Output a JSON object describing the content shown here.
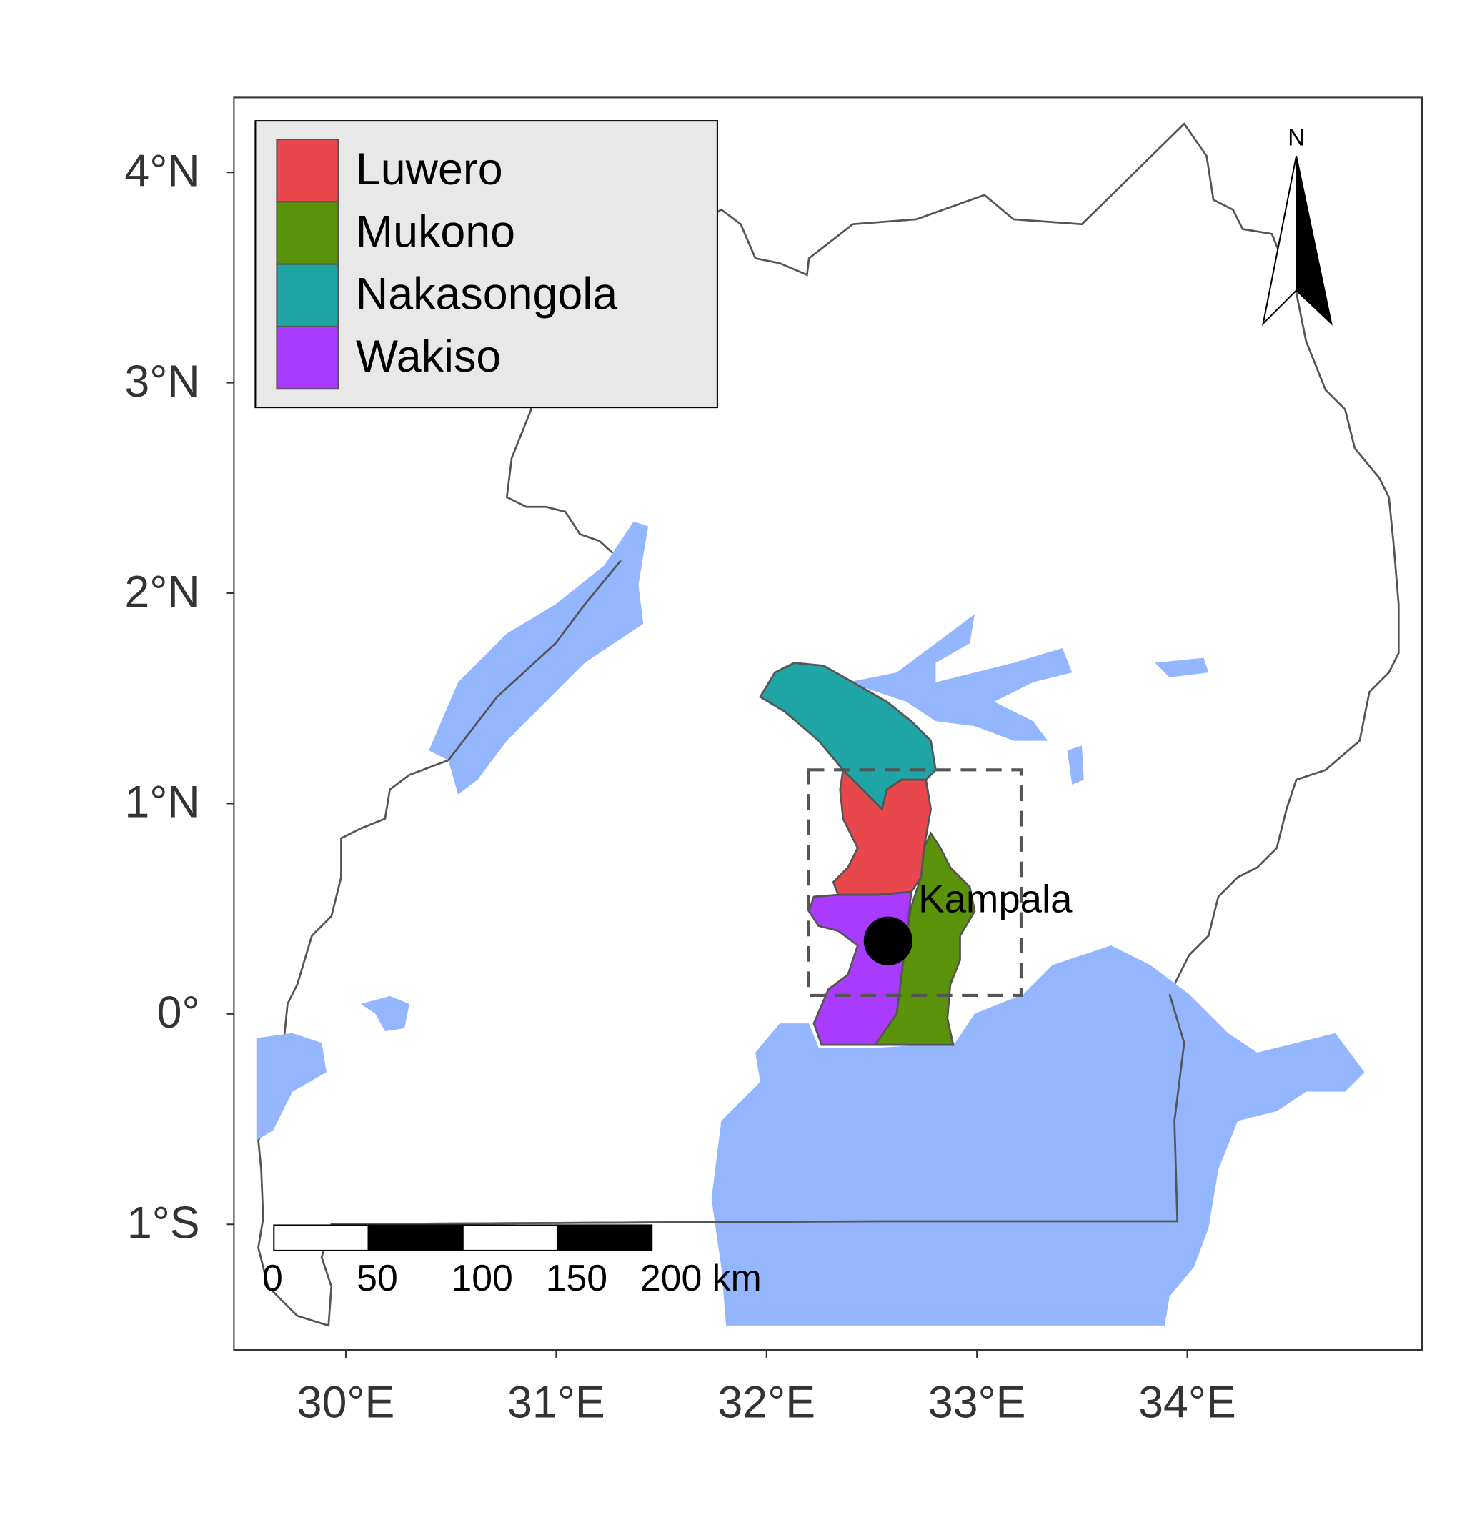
{
  "map": {
    "xlim": [
      29.468,
      35.116
    ],
    "ylim": [
      -1.597,
      4.356
    ],
    "xticks": [
      {
        "value": 30,
        "label": "30°E"
      },
      {
        "value": 31,
        "label": "31°E"
      },
      {
        "value": 32,
        "label": "32°E"
      },
      {
        "value": 33,
        "label": "33°E"
      },
      {
        "value": 34,
        "label": "34°E"
      }
    ],
    "yticks": [
      {
        "value": 4,
        "label": "4°N"
      },
      {
        "value": 3,
        "label": "3°N"
      },
      {
        "value": 2,
        "label": "2°N"
      },
      {
        "value": 1,
        "label": "1°N"
      },
      {
        "value": 0,
        "label": "0°"
      },
      {
        "value": -1,
        "label": "1°S"
      }
    ],
    "legend": [
      {
        "name": "Luwero",
        "color": "#e8474b"
      },
      {
        "name": "Mukono",
        "color": "#5a9209"
      },
      {
        "name": "Nakasongola",
        "color": "#1fa5a5"
      },
      {
        "name": "Wakiso",
        "color": "#a83bff"
      }
    ],
    "city": {
      "name": "Kampala",
      "lon": 32.578,
      "lat": 0.347
    },
    "study_area": {
      "lon": [
        32.2,
        33.21
      ],
      "lat": [
        0.088,
        1.16
      ]
    },
    "scale_bar": [
      {
        "value": 0,
        "label": "0"
      },
      {
        "value": 50,
        "label": "50"
      },
      {
        "value": 100,
        "label": "100"
      },
      {
        "value": 150,
        "label": "150"
      },
      {
        "value": 200,
        "label": "200 km"
      }
    ],
    "north": "N"
  }
}
